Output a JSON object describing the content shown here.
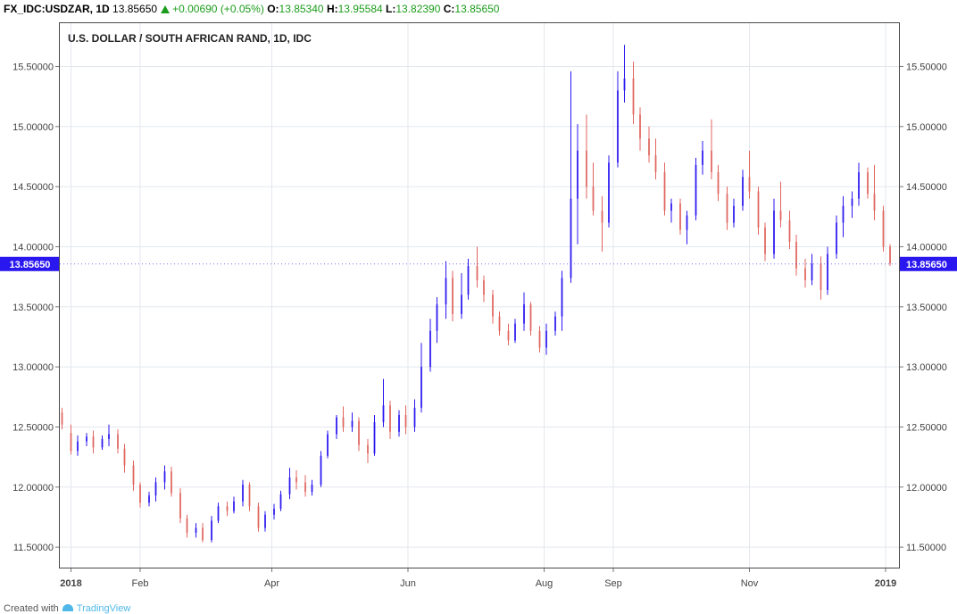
{
  "header": {
    "symbol": "FX_IDC:USDZAR, 1D",
    "last": "13.85650",
    "change": "+0.00690 (+0.05%)",
    "o_label": "O:",
    "o_value": "13.85340",
    "h_label": "H:",
    "h_value": "13.95584",
    "l_label": "L:",
    "l_value": "13.82390",
    "c_label": "C:",
    "c_value": "13.85650"
  },
  "footer": {
    "text": "Created with",
    "brand": "TradingView"
  },
  "colors": {
    "up": "#2a17f0",
    "down": "#e0655f",
    "grid": "#e3e7ee",
    "price_label": "#2a17f0",
    "header_up": "#1c9c1c"
  },
  "chart_data": {
    "type": "candlestick",
    "title": "U.S. DOLLAR / SOUTH AFRICAN RAND, 1D, IDC",
    "ylim": [
      11.33,
      15.86
    ],
    "yticks": [
      "11.50000",
      "12.00000",
      "12.50000",
      "13.00000",
      "13.50000",
      "14.00000",
      "14.50000",
      "15.00000",
      "15.50000"
    ],
    "ytick_values": [
      11.5,
      12.0,
      12.5,
      13.0,
      13.5,
      14.0,
      14.5,
      15.0,
      15.5
    ],
    "x_range": [
      "2017-12-27",
      "2019-01-07"
    ],
    "xticks": [
      {
        "date": "2018-01-01",
        "label": "2018",
        "bold": true
      },
      {
        "date": "2018-02-01",
        "label": "Feb",
        "bold": false
      },
      {
        "date": "2018-04-01",
        "label": "Apr",
        "bold": false
      },
      {
        "date": "2018-06-01",
        "label": "Jun",
        "bold": false
      },
      {
        "date": "2018-08-01",
        "label": "Aug",
        "bold": false
      },
      {
        "date": "2018-09-01",
        "label": "Sep",
        "bold": false
      },
      {
        "date": "2018-11-01",
        "label": "Nov",
        "bold": false
      },
      {
        "date": "2019-01-01",
        "label": "2019",
        "bold": true
      }
    ],
    "last_price": {
      "value": 13.8565,
      "label": "13.85650"
    },
    "grid": true,
    "candle_width_days": 0.7,
    "candles": [
      [
        "2017-12-28",
        12.62,
        12.66,
        12.48,
        12.52
      ],
      [
        "2018-01-01",
        12.45,
        12.52,
        12.27,
        12.3
      ],
      [
        "2018-01-04",
        12.3,
        12.43,
        12.26,
        12.38
      ],
      [
        "2018-01-08",
        12.38,
        12.45,
        12.34,
        12.42
      ],
      [
        "2018-01-11",
        12.42,
        12.47,
        12.28,
        12.33
      ],
      [
        "2018-01-15",
        12.33,
        12.43,
        12.31,
        12.4
      ],
      [
        "2018-01-18",
        12.4,
        12.52,
        12.34,
        12.44
      ],
      [
        "2018-01-22",
        12.44,
        12.48,
        12.28,
        12.32
      ],
      [
        "2018-01-25",
        12.32,
        12.36,
        12.12,
        12.18
      ],
      [
        "2018-01-29",
        12.18,
        12.22,
        11.97,
        12.02
      ],
      [
        "2018-02-01",
        12.02,
        12.04,
        11.83,
        11.87
      ],
      [
        "2018-02-05",
        11.87,
        11.96,
        11.84,
        11.93
      ],
      [
        "2018-02-08",
        11.93,
        12.08,
        11.88,
        12.04
      ],
      [
        "2018-02-12",
        12.04,
        12.18,
        11.98,
        12.13
      ],
      [
        "2018-02-15",
        12.13,
        12.17,
        11.92,
        11.95
      ],
      [
        "2018-02-19",
        11.95,
        11.99,
        11.7,
        11.74
      ],
      [
        "2018-02-22",
        11.74,
        11.77,
        11.58,
        11.62
      ],
      [
        "2018-02-26",
        11.62,
        11.7,
        11.58,
        11.66
      ],
      [
        "2018-03-01",
        11.66,
        11.7,
        11.54,
        11.56
      ],
      [
        "2018-03-05",
        11.56,
        11.76,
        11.54,
        11.72
      ],
      [
        "2018-03-08",
        11.72,
        11.87,
        11.7,
        11.84
      ],
      [
        "2018-03-12",
        11.84,
        11.88,
        11.76,
        11.8
      ],
      [
        "2018-03-15",
        11.8,
        11.92,
        11.78,
        11.88
      ],
      [
        "2018-03-19",
        11.88,
        12.06,
        11.84,
        12.02
      ],
      [
        "2018-03-22",
        12.02,
        12.04,
        11.8,
        11.84
      ],
      [
        "2018-03-26",
        11.84,
        11.87,
        11.63,
        11.66
      ],
      [
        "2018-03-29",
        11.66,
        11.8,
        11.63,
        11.77
      ],
      [
        "2018-04-02",
        11.77,
        11.86,
        11.73,
        11.82
      ],
      [
        "2018-04-05",
        11.82,
        11.97,
        11.8,
        11.94
      ],
      [
        "2018-04-09",
        11.94,
        12.16,
        11.9,
        12.08
      ],
      [
        "2018-04-12",
        12.08,
        12.14,
        11.98,
        12.04
      ],
      [
        "2018-04-16",
        12.04,
        12.1,
        11.92,
        11.96
      ],
      [
        "2018-04-19",
        11.96,
        12.06,
        11.93,
        12.02
      ],
      [
        "2018-04-23",
        12.02,
        12.3,
        12.0,
        12.26
      ],
      [
        "2018-04-26",
        12.26,
        12.47,
        12.24,
        12.44
      ],
      [
        "2018-04-30",
        12.44,
        12.6,
        12.4,
        12.58
      ],
      [
        "2018-05-03",
        12.58,
        12.67,
        12.46,
        12.5
      ],
      [
        "2018-05-07",
        12.5,
        12.62,
        12.46,
        12.55
      ],
      [
        "2018-05-10",
        12.55,
        12.58,
        12.3,
        12.35
      ],
      [
        "2018-05-14",
        12.35,
        12.4,
        12.2,
        12.28
      ],
      [
        "2018-05-17",
        12.28,
        12.6,
        12.26,
        12.54
      ],
      [
        "2018-05-21",
        12.54,
        12.9,
        12.5,
        12.68
      ],
      [
        "2018-05-24",
        12.68,
        12.72,
        12.4,
        12.46
      ],
      [
        "2018-05-28",
        12.46,
        12.64,
        12.42,
        12.6
      ],
      [
        "2018-05-31",
        12.6,
        12.68,
        12.44,
        12.5
      ],
      [
        "2018-06-04",
        12.5,
        12.73,
        12.46,
        12.66
      ],
      [
        "2018-06-07",
        12.66,
        13.2,
        12.62,
        13.0
      ],
      [
        "2018-06-11",
        13.0,
        13.4,
        12.96,
        13.3
      ],
      [
        "2018-06-14",
        13.3,
        13.58,
        13.2,
        13.52
      ],
      [
        "2018-06-18",
        13.52,
        13.88,
        13.4,
        13.74
      ],
      [
        "2018-06-21",
        13.74,
        13.8,
        13.38,
        13.44
      ],
      [
        "2018-06-25",
        13.44,
        13.78,
        13.4,
        13.6
      ],
      [
        "2018-06-28",
        13.6,
        13.9,
        13.56,
        13.84
      ],
      [
        "2018-07-02",
        13.84,
        14.0,
        13.66,
        13.72
      ],
      [
        "2018-07-05",
        13.72,
        13.76,
        13.54,
        13.6
      ],
      [
        "2018-07-09",
        13.6,
        13.64,
        13.36,
        13.42
      ],
      [
        "2018-07-12",
        13.42,
        13.46,
        13.26,
        13.3
      ],
      [
        "2018-07-16",
        13.3,
        13.36,
        13.18,
        13.22
      ],
      [
        "2018-07-19",
        13.22,
        13.4,
        13.2,
        13.36
      ],
      [
        "2018-07-23",
        13.36,
        13.62,
        13.3,
        13.52
      ],
      [
        "2018-07-26",
        13.52,
        13.54,
        13.26,
        13.3
      ],
      [
        "2018-07-30",
        13.3,
        13.34,
        13.12,
        13.16
      ],
      [
        "2018-08-02",
        13.16,
        13.36,
        13.1,
        13.3
      ],
      [
        "2018-08-06",
        13.3,
        13.46,
        13.26,
        13.42
      ],
      [
        "2018-08-09",
        13.42,
        13.8,
        13.3,
        13.74
      ],
      [
        "2018-08-13",
        13.74,
        15.46,
        13.7,
        14.4
      ],
      [
        "2018-08-16",
        14.4,
        15.02,
        14.02,
        14.8
      ],
      [
        "2018-08-20",
        14.8,
        15.1,
        14.4,
        14.5
      ],
      [
        "2018-08-23",
        14.5,
        14.7,
        14.26,
        14.3
      ],
      [
        "2018-08-27",
        14.3,
        14.42,
        13.96,
        14.2
      ],
      [
        "2018-08-30",
        14.2,
        14.76,
        14.16,
        14.7
      ],
      [
        "2018-09-03",
        14.7,
        15.46,
        14.66,
        15.3
      ],
      [
        "2018-09-06",
        15.3,
        15.68,
        15.2,
        15.4
      ],
      [
        "2018-09-10",
        15.4,
        15.54,
        15.02,
        15.1
      ],
      [
        "2018-09-13",
        15.1,
        15.16,
        14.8,
        14.9
      ],
      [
        "2018-09-17",
        14.9,
        15.0,
        14.7,
        14.76
      ],
      [
        "2018-09-20",
        14.76,
        14.9,
        14.56,
        14.62
      ],
      [
        "2018-09-24",
        14.62,
        14.7,
        14.26,
        14.3
      ],
      [
        "2018-09-27",
        14.3,
        14.4,
        14.2,
        14.36
      ],
      [
        "2018-10-01",
        14.36,
        14.4,
        14.1,
        14.14
      ],
      [
        "2018-10-04",
        14.14,
        14.3,
        14.02,
        14.26
      ],
      [
        "2018-10-08",
        14.26,
        14.74,
        14.22,
        14.68
      ],
      [
        "2018-10-11",
        14.68,
        14.88,
        14.6,
        14.8
      ],
      [
        "2018-10-15",
        14.8,
        15.06,
        14.56,
        14.62
      ],
      [
        "2018-10-18",
        14.62,
        14.68,
        14.38,
        14.44
      ],
      [
        "2018-10-22",
        14.44,
        14.5,
        14.14,
        14.2
      ],
      [
        "2018-10-25",
        14.2,
        14.4,
        14.16,
        14.34
      ],
      [
        "2018-10-29",
        14.34,
        14.64,
        14.3,
        14.58
      ],
      [
        "2018-11-01",
        14.58,
        14.8,
        14.4,
        14.46
      ],
      [
        "2018-11-05",
        14.46,
        14.5,
        14.1,
        14.16
      ],
      [
        "2018-11-08",
        14.16,
        14.2,
        13.88,
        13.94
      ],
      [
        "2018-11-12",
        13.94,
        14.4,
        13.9,
        14.3
      ],
      [
        "2018-11-15",
        14.3,
        14.54,
        14.16,
        14.22
      ],
      [
        "2018-11-19",
        14.22,
        14.3,
        13.98,
        14.04
      ],
      [
        "2018-11-22",
        14.04,
        14.1,
        13.76,
        13.82
      ],
      [
        "2018-11-26",
        13.82,
        13.9,
        13.66,
        13.72
      ],
      [
        "2018-11-29",
        13.72,
        13.94,
        13.68,
        13.86
      ],
      [
        "2018-12-03",
        13.86,
        13.92,
        13.56,
        13.64
      ],
      [
        "2018-12-06",
        13.64,
        14.0,
        13.6,
        13.94
      ],
      [
        "2018-12-10",
        13.94,
        14.26,
        13.9,
        14.2
      ],
      [
        "2018-12-13",
        14.2,
        14.42,
        14.08,
        14.34
      ],
      [
        "2018-12-17",
        14.34,
        14.46,
        14.24,
        14.4
      ],
      [
        "2018-12-20",
        14.4,
        14.7,
        14.34,
        14.62
      ],
      [
        "2018-12-24",
        14.62,
        14.66,
        14.4,
        14.44
      ],
      [
        "2018-12-27",
        14.44,
        14.68,
        14.22,
        14.3
      ],
      [
        "2018-12-31",
        14.3,
        14.34,
        13.96,
        14.0
      ],
      [
        "2019-01-03",
        14.0,
        14.02,
        13.84,
        13.86
      ]
    ]
  }
}
